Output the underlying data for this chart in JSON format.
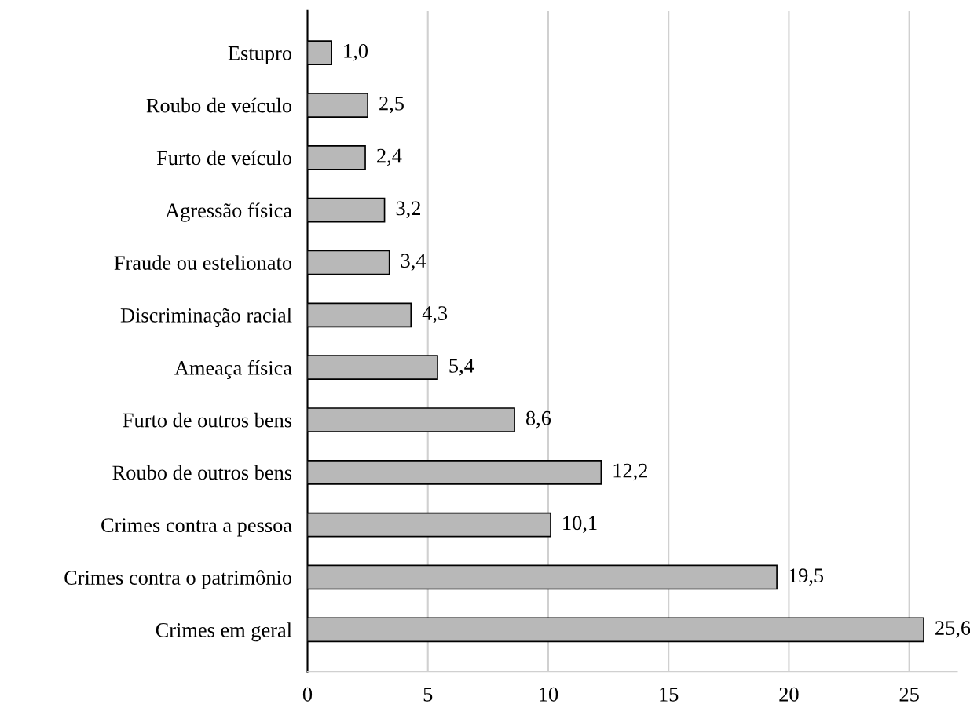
{
  "chart_data": {
    "type": "bar",
    "orientation": "horizontal",
    "categories": [
      "Estupro",
      "Roubo de veículo",
      "Furto de veículo",
      "Agressão física",
      "Fraude ou estelionato",
      "Discriminação racial",
      "Ameaça física",
      "Furto de outros bens",
      "Roubo de outros bens",
      "Crimes contra a pessoa",
      "Crimes contra o patrimônio",
      "Crimes em geral"
    ],
    "values": [
      1.0,
      2.5,
      2.4,
      3.2,
      3.4,
      4.3,
      5.4,
      8.6,
      12.2,
      10.1,
      19.5,
      25.6
    ],
    "value_labels": [
      "1,0",
      "2,5",
      "2,4",
      "3,2",
      "3,4",
      "4,3",
      "5,4",
      "8,6",
      "12,2",
      "10,1",
      "19,5",
      "25,6"
    ],
    "color": "#b8b8b8",
    "xlim": [
      0,
      27
    ],
    "xticks": [
      0,
      5,
      10,
      15,
      20,
      25
    ],
    "grid": "x"
  }
}
